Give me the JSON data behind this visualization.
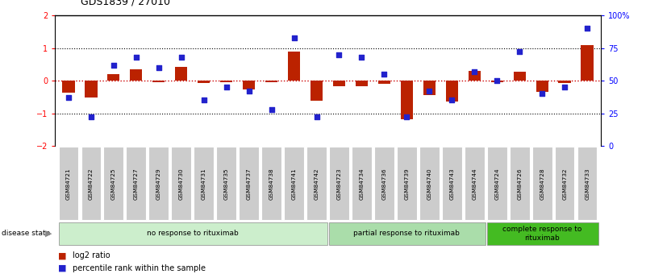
{
  "title": "GDS1839 / 27010",
  "samples": [
    "GSM84721",
    "GSM84722",
    "GSM84725",
    "GSM84727",
    "GSM84729",
    "GSM84730",
    "GSM84731",
    "GSM84735",
    "GSM84737",
    "GSM84738",
    "GSM84741",
    "GSM84742",
    "GSM84723",
    "GSM84734",
    "GSM84736",
    "GSM84739",
    "GSM84740",
    "GSM84743",
    "GSM84744",
    "GSM84724",
    "GSM84726",
    "GSM84728",
    "GSM84732",
    "GSM84733"
  ],
  "log2_ratio": [
    -0.38,
    -0.52,
    0.2,
    0.35,
    -0.05,
    0.42,
    -0.07,
    -0.05,
    -0.28,
    -0.05,
    0.88,
    -0.62,
    -0.18,
    -0.18,
    -0.1,
    -1.18,
    -0.45,
    -0.65,
    0.3,
    -0.05,
    0.28,
    -0.35,
    -0.08,
    1.08
  ],
  "percentile": [
    37,
    22,
    62,
    68,
    60,
    68,
    35,
    45,
    42,
    28,
    83,
    22,
    70,
    68,
    55,
    22,
    42,
    35,
    57,
    50,
    72,
    40,
    45,
    90
  ],
  "groups": [
    {
      "label": "no response to rituximab",
      "start": 0,
      "end": 12,
      "color": "#cceecc"
    },
    {
      "label": "partial response to rituximab",
      "start": 12,
      "end": 19,
      "color": "#aaddaa"
    },
    {
      "label": "complete response to\nrituximab",
      "start": 19,
      "end": 24,
      "color": "#44bb22"
    }
  ],
  "ylim_left": [
    -2,
    2
  ],
  "ylim_right": [
    0,
    100
  ],
  "bar_color": "#bb2200",
  "dot_color": "#2222cc",
  "zero_line_color": "#cc0000",
  "background_color": "#ffffff"
}
